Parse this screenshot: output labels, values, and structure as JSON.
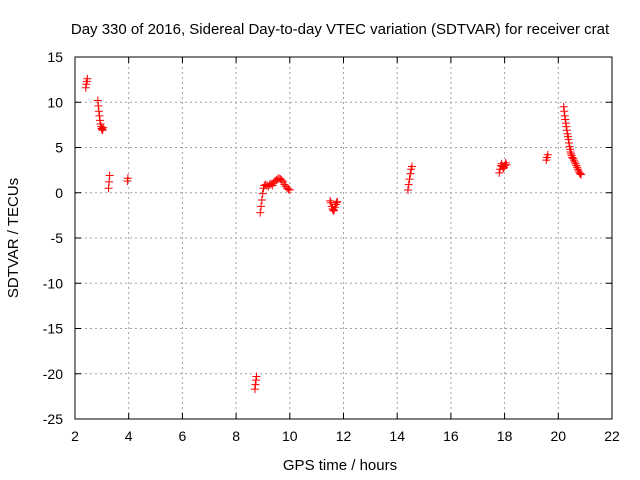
{
  "chart_data": {
    "type": "scatter",
    "title": "Day 330 of 2016, Sidereal Day-to-day VTEC variation (SDTVAR) for receiver crat",
    "xlabel": "GPS time / hours",
    "ylabel": "SDTVAR / TECUs",
    "xlim": [
      2,
      22
    ],
    "ylim": [
      -25,
      15
    ],
    "xticks": [
      2,
      4,
      6,
      8,
      10,
      12,
      14,
      16,
      18,
      20,
      22
    ],
    "yticks": [
      -25,
      -20,
      -15,
      -10,
      -5,
      0,
      5,
      10,
      15
    ],
    "grid": true,
    "marker": "plus",
    "color": "#ff0000",
    "series": [
      {
        "name": "SDTVAR",
        "points": [
          [
            2.4,
            11.6
          ],
          [
            2.42,
            12.0
          ],
          [
            2.44,
            12.3
          ],
          [
            2.46,
            12.6
          ],
          [
            2.85,
            10.2
          ],
          [
            2.87,
            9.6
          ],
          [
            2.89,
            9.0
          ],
          [
            2.91,
            8.5
          ],
          [
            2.93,
            8.0
          ],
          [
            2.95,
            7.6
          ],
          [
            2.97,
            7.3
          ],
          [
            2.99,
            7.1
          ],
          [
            3.01,
            7.0
          ],
          [
            3.03,
            6.9
          ],
          [
            3.05,
            7.2
          ],
          [
            3.25,
            0.5
          ],
          [
            3.27,
            1.2
          ],
          [
            3.29,
            1.9
          ],
          [
            3.95,
            1.3
          ],
          [
            3.97,
            1.6
          ],
          [
            8.7,
            -21.7
          ],
          [
            8.72,
            -21.2
          ],
          [
            8.74,
            -20.7
          ],
          [
            8.76,
            -20.3
          ],
          [
            8.9,
            -2.2
          ],
          [
            8.93,
            -1.5
          ],
          [
            8.96,
            -0.8
          ],
          [
            8.99,
            -0.1
          ],
          [
            9.02,
            0.5
          ],
          [
            9.05,
            0.8
          ],
          [
            9.1,
            0.9
          ],
          [
            9.15,
            0.8
          ],
          [
            9.2,
            0.7
          ],
          [
            9.25,
            0.9
          ],
          [
            9.3,
            1.0
          ],
          [
            9.35,
            0.8
          ],
          [
            9.4,
            1.1
          ],
          [
            9.45,
            1.3
          ],
          [
            9.5,
            1.4
          ],
          [
            9.55,
            1.5
          ],
          [
            9.6,
            1.6
          ],
          [
            9.65,
            1.5
          ],
          [
            9.7,
            1.4
          ],
          [
            9.75,
            1.2
          ],
          [
            9.8,
            0.9
          ],
          [
            9.85,
            0.7
          ],
          [
            9.9,
            0.5
          ],
          [
            9.95,
            0.4
          ],
          [
            10.0,
            0.3
          ],
          [
            11.5,
            -0.9
          ],
          [
            11.53,
            -1.1
          ],
          [
            11.56,
            -1.5
          ],
          [
            11.59,
            -1.8
          ],
          [
            11.62,
            -2.0
          ],
          [
            11.65,
            -1.9
          ],
          [
            11.68,
            -1.6
          ],
          [
            11.71,
            -1.3
          ],
          [
            11.74,
            -1.1
          ],
          [
            11.77,
            -1.0
          ],
          [
            14.4,
            0.3
          ],
          [
            14.43,
            0.9
          ],
          [
            14.46,
            1.5
          ],
          [
            14.49,
            2.1
          ],
          [
            14.52,
            2.6
          ],
          [
            14.55,
            2.9
          ],
          [
            17.8,
            2.2
          ],
          [
            17.83,
            2.6
          ],
          [
            17.86,
            3.0
          ],
          [
            17.89,
            3.2
          ],
          [
            17.92,
            2.9
          ],
          [
            17.95,
            2.7
          ],
          [
            17.98,
            2.8
          ],
          [
            18.01,
            3.0
          ],
          [
            18.04,
            3.3
          ],
          [
            18.07,
            3.1
          ],
          [
            19.55,
            3.6
          ],
          [
            19.58,
            3.9
          ],
          [
            19.61,
            4.2
          ],
          [
            20.2,
            9.5
          ],
          [
            20.22,
            9.0
          ],
          [
            20.24,
            8.5
          ],
          [
            20.26,
            8.1
          ],
          [
            20.28,
            7.7
          ],
          [
            20.3,
            7.3
          ],
          [
            20.32,
            6.9
          ],
          [
            20.34,
            6.5
          ],
          [
            20.36,
            6.2
          ],
          [
            20.38,
            5.9
          ],
          [
            20.4,
            5.5
          ],
          [
            20.42,
            5.1
          ],
          [
            20.44,
            4.8
          ],
          [
            20.46,
            4.5
          ],
          [
            20.48,
            4.3
          ],
          [
            20.5,
            4.1
          ],
          [
            20.52,
            3.9
          ],
          [
            20.55,
            3.8
          ],
          [
            20.58,
            3.6
          ],
          [
            20.61,
            3.4
          ],
          [
            20.64,
            3.2
          ],
          [
            20.67,
            3.0
          ],
          [
            20.7,
            2.8
          ],
          [
            20.73,
            2.6
          ],
          [
            20.76,
            2.4
          ],
          [
            20.79,
            2.2
          ],
          [
            20.82,
            2.1
          ],
          [
            20.85,
            2.0
          ]
        ]
      }
    ]
  }
}
